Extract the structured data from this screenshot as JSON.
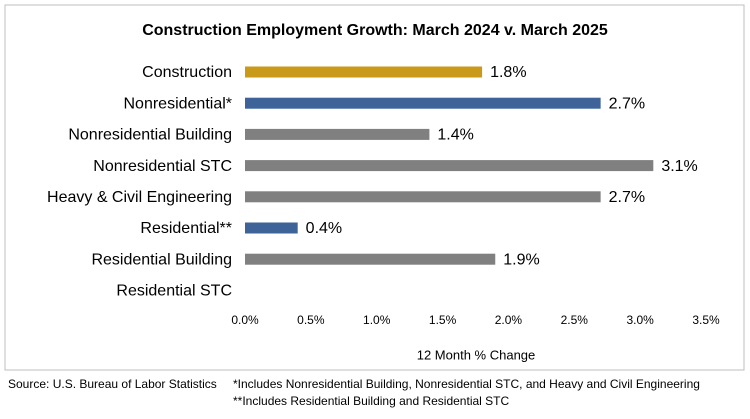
{
  "chart_data": {
    "type": "hbar",
    "title": "Construction Employment Growth: March 2024 v. March 2025",
    "categories": [
      "Construction",
      "Nonresidential*",
      "Nonresidential Building",
      "Nonresidential STC",
      "Heavy & Civil Engineering",
      "Residential**",
      "Residential Building",
      "Residential STC"
    ],
    "values": [
      1.8,
      2.7,
      1.4,
      3.1,
      2.7,
      0.4,
      1.9,
      null
    ],
    "value_labels": [
      "1.8%",
      "2.7%",
      "1.4%",
      "3.1%",
      "2.7%",
      "0.4%",
      "1.9%",
      null
    ],
    "colors": [
      "#c99a1a",
      "#3d6399",
      "#808080",
      "#808080",
      "#808080",
      "#3d6399",
      "#808080",
      "#808080"
    ],
    "xlim": [
      0,
      3.5
    ],
    "xticks": [
      {
        "value": 0,
        "label": "0.0%"
      },
      {
        "value": 0.5,
        "label": "0.5%"
      },
      {
        "value": 1,
        "label": "1.0%"
      },
      {
        "value": 1.5,
        "label": "1.5%"
      },
      {
        "value": 2,
        "label": "2.0%"
      },
      {
        "value": 2.5,
        "label": "2.5%"
      },
      {
        "value": 3,
        "label": "3.0%"
      },
      {
        "value": 3.5,
        "label": "3.5%"
      }
    ],
    "xlabel": "12 Month % Change",
    "grid": false,
    "source": "Source:  U.S. Bureau of Labor Statistics",
    "notes": [
      "*Includes Nonresidential Building, Nonresidential STC, and Heavy and Civil Engineering",
      "**Includes Residential Building and Residential STC"
    ]
  }
}
